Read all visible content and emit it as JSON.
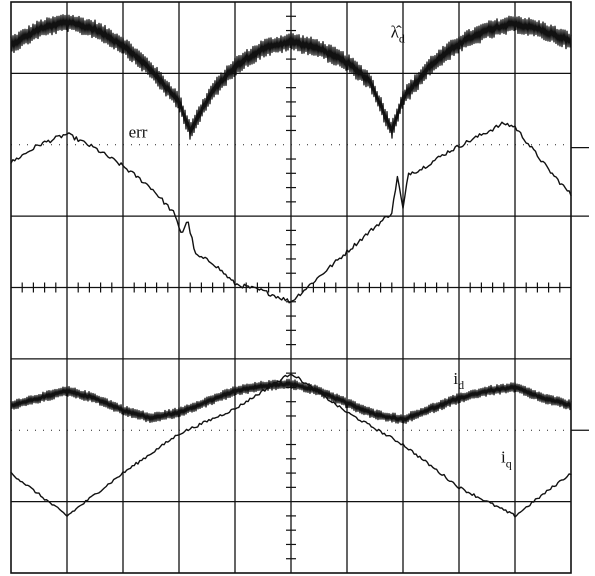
{
  "chart_data": {
    "type": "line",
    "title": "",
    "xlabel": "",
    "ylabel": "",
    "xlim": [
      0,
      10
    ],
    "ylim": [
      -4,
      4
    ],
    "grid": true,
    "x_divisions": 10,
    "y_divisions": 8,
    "annotations": [
      {
        "label": "err",
        "x": 2.1,
        "y": 2.1
      },
      {
        "label": "λ̂",
        "sub": "d",
        "x": 6.78,
        "y": 3.5
      },
      {
        "label": "i",
        "sub": "d",
        "x": 7.9,
        "y": -1.35
      },
      {
        "label": "i",
        "sub": "q",
        "x": 8.75,
        "y": -2.45
      }
    ],
    "series": [
      {
        "name": "λ̂d",
        "noise": 0.13,
        "x": [
          0,
          0.5,
          1,
          1.5,
          2,
          2.5,
          3,
          3.2,
          3.6,
          4,
          4.5,
          5,
          5.5,
          6,
          6.4,
          6.8,
          7,
          7.5,
          8,
          8.5,
          9,
          9.5,
          10
        ],
        "y": [
          3.4,
          3.62,
          3.72,
          3.62,
          3.4,
          3.05,
          2.6,
          2.2,
          2.75,
          3.1,
          3.35,
          3.45,
          3.35,
          3.15,
          2.9,
          2.2,
          2.65,
          3.12,
          3.42,
          3.6,
          3.7,
          3.6,
          3.45
        ]
      },
      {
        "name": "err",
        "noise": 0.03,
        "x": [
          0,
          0.5,
          1,
          1.5,
          2,
          2.5,
          2.9,
          3.05,
          3.15,
          3.3,
          3.6,
          4,
          4.5,
          5,
          5.5,
          6,
          6.5,
          6.8,
          6.9,
          7,
          7.1,
          7.3,
          7.8,
          8.3,
          8.8,
          9,
          9.2,
          9.6,
          10
        ],
        "y": [
          1.75,
          2.0,
          2.15,
          1.95,
          1.7,
          1.4,
          1.05,
          0.75,
          0.95,
          0.45,
          0.35,
          0.05,
          -0.05,
          -0.2,
          0.15,
          0.5,
          0.85,
          1.05,
          1.55,
          1.1,
          1.6,
          1.65,
          1.9,
          2.1,
          2.3,
          2.25,
          2.05,
          1.65,
          1.3
        ]
      },
      {
        "name": "id",
        "noise": 0.07,
        "x": [
          0,
          0.5,
          1,
          1.5,
          2,
          2.5,
          3,
          3.5,
          4,
          4.5,
          5,
          5.5,
          6,
          6.5,
          7,
          7.5,
          8,
          8.5,
          9,
          9.5,
          10
        ],
        "y": [
          -1.65,
          -1.55,
          -1.45,
          -1.55,
          -1.72,
          -1.83,
          -1.75,
          -1.6,
          -1.45,
          -1.38,
          -1.35,
          -1.45,
          -1.62,
          -1.78,
          -1.85,
          -1.7,
          -1.55,
          -1.45,
          -1.4,
          -1.55,
          -1.65
        ]
      },
      {
        "name": "iq",
        "noise": 0.02,
        "x": [
          0,
          1,
          2,
          3,
          4,
          5,
          6,
          7,
          8,
          9,
          10
        ],
        "y": [
          -2.6,
          -3.2,
          -2.6,
          -2.05,
          -1.7,
          -1.2,
          -1.75,
          -2.2,
          -2.8,
          -3.2,
          -2.6
        ]
      }
    ]
  }
}
